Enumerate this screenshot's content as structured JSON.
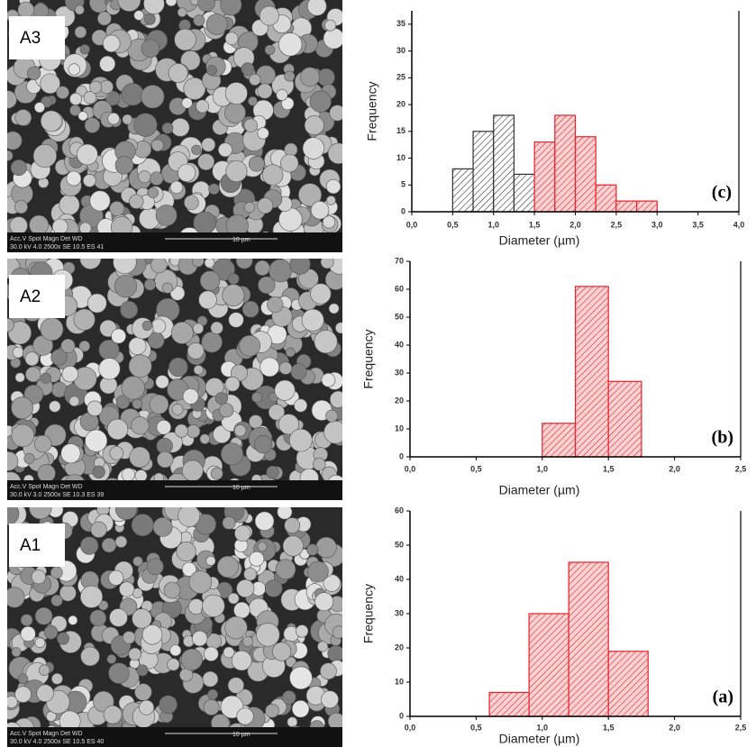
{
  "chart_data": [
    {
      "type": "histogram",
      "annotation": "(c)",
      "xlabel": "Diameter (µm)",
      "ylabel": "Frequency",
      "xlim": [
        0,
        4
      ],
      "xticks": [
        {
          "value": 0,
          "label": "0,0"
        },
        {
          "value": 0.5,
          "label": "0,5"
        },
        {
          "value": 1,
          "label": "1,0"
        },
        {
          "value": 1.5,
          "label": "1,5"
        },
        {
          "value": 2,
          "label": "2,0"
        },
        {
          "value": 2.5,
          "label": "2,5"
        },
        {
          "value": 3,
          "label": "3,0"
        },
        {
          "value": 3.5,
          "label": "3,5"
        },
        {
          "value": 4,
          "label": "4,0"
        }
      ],
      "ylim": [
        0,
        37.5
      ],
      "yticks": [
        0,
        5,
        10,
        15,
        20,
        25,
        30,
        35
      ],
      "series": [
        {
          "color": "#333333",
          "bins": [
            0.5,
            0.75,
            1,
            1.25,
            1.5
          ],
          "values": [
            8,
            15,
            18,
            7
          ]
        },
        {
          "color": "#e8202a",
          "bins": [
            1.5,
            1.75,
            2,
            2.25,
            2.5,
            2.75,
            3
          ],
          "values": [
            13,
            18,
            14,
            5,
            2,
            2
          ]
        }
      ]
    },
    {
      "type": "histogram",
      "annotation": "(b)",
      "xlabel": "Diameter (µm)",
      "ylabel": "Frequency",
      "xlim": [
        0,
        2.5
      ],
      "xticks": [
        {
          "value": 0,
          "label": "0,0"
        },
        {
          "value": 0.5,
          "label": "0,5"
        },
        {
          "value": 1,
          "label": "1,0"
        },
        {
          "value": 1.5,
          "label": "1,5"
        },
        {
          "value": 2,
          "label": "2,0"
        },
        {
          "value": 2.5,
          "label": "2,5"
        }
      ],
      "ylim": [
        0,
        70
      ],
      "yticks": [
        0,
        10,
        20,
        30,
        40,
        50,
        60,
        70
      ],
      "series": [
        {
          "color": "#e8202a",
          "bins": [
            1,
            1.25,
            1.5,
            1.75
          ],
          "values": [
            12,
            61,
            27
          ]
        }
      ]
    },
    {
      "type": "histogram",
      "annotation": "(a)",
      "xlabel": "Diameter (µm)",
      "ylabel": "Frequency",
      "xlim": [
        0,
        2.5
      ],
      "xticks": [
        {
          "value": 0,
          "label": "0,0"
        },
        {
          "value": 0.5,
          "label": "0,5"
        },
        {
          "value": 1,
          "label": "1,0"
        },
        {
          "value": 1.5,
          "label": "1,5"
        },
        {
          "value": 2,
          "label": "2,0"
        },
        {
          "value": 2.5,
          "label": "2,5"
        }
      ],
      "ylim": [
        0,
        60
      ],
      "yticks": [
        0,
        10,
        20,
        30,
        40,
        50,
        60
      ],
      "series": [
        {
          "color": "#e8202a",
          "bins": [
            0.6,
            0.9,
            1.2,
            1.5,
            1.8
          ],
          "values": [
            7,
            30,
            45,
            19
          ]
        }
      ]
    }
  ],
  "images": [
    {
      "label": "A3",
      "info_top": "Acc.V  Spot Magn    Det  WD",
      "info_bottom": "30.0 kV 4.0  2500x   SE  10.5 ES 41",
      "scale": "10 µm"
    },
    {
      "label": "A2",
      "info_top": "Acc.V  Spot Magn    Det  WD",
      "info_bottom": "30.0 kV 3.0  2500x   SE  10.3 ES 39",
      "scale": "10 µm"
    },
    {
      "label": "A1",
      "info_top": "Acc.V  Spot Magn    Det  WD",
      "info_bottom": "30.0 kV 4.0  2500x   SE  10.5 ES 40",
      "scale": "10 µm"
    }
  ]
}
